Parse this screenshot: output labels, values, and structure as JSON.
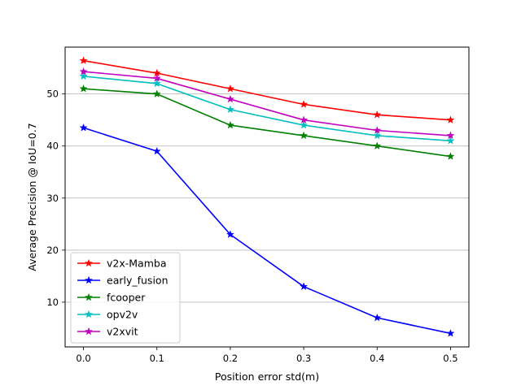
{
  "chart_data": {
    "type": "line",
    "title": "",
    "xlabel": "Position error std(m)",
    "ylabel": "Average Precision @ IoU=0.7",
    "x": [
      0.0,
      0.1,
      0.2,
      0.3,
      0.4,
      0.5
    ],
    "x_tick_labels": [
      "0.0",
      "0.1",
      "0.2",
      "0.3",
      "0.4",
      "0.5"
    ],
    "y_ticks": [
      10,
      20,
      30,
      40,
      50
    ],
    "y_tick_labels": [
      "10",
      "20",
      "30",
      "40",
      "50"
    ],
    "xlim": [
      -0.025,
      0.525
    ],
    "ylim": [
      1.4,
      59.0
    ],
    "grid": "horizontal",
    "legend_position": "bottom-left",
    "marker": "star",
    "series": [
      {
        "name": "v2x-Mamba",
        "color": "#ff0000",
        "values": [
          56.4,
          54.0,
          51.0,
          48.0,
          46.0,
          45.0
        ]
      },
      {
        "name": "early_fusion",
        "color": "#0000ff",
        "values": [
          43.5,
          39.0,
          23.0,
          13.0,
          7.0,
          4.0
        ]
      },
      {
        "name": "fcooper",
        "color": "#008000",
        "values": [
          51.0,
          50.0,
          44.0,
          42.0,
          40.0,
          38.0
        ]
      },
      {
        "name": "opv2v",
        "color": "#00bfbf",
        "values": [
          53.4,
          52.0,
          47.0,
          44.0,
          42.0,
          41.0
        ]
      },
      {
        "name": "v2xvit",
        "color": "#bf00bf",
        "values": [
          54.3,
          53.0,
          49.0,
          45.0,
          43.0,
          42.0
        ]
      }
    ]
  }
}
